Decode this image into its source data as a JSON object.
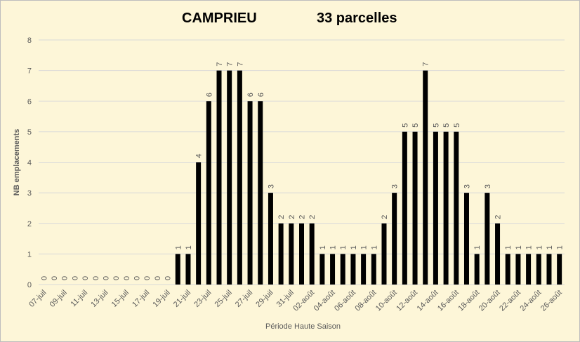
{
  "title_left": "CAMPRIEU",
  "title_right": "33 parcelles",
  "chart_data": {
    "type": "bar",
    "title": "CAMPRIEU 33 parcelles",
    "xlabel": "Période Haute Saison",
    "ylabel": "NB emplacements",
    "ylim": [
      0,
      8
    ],
    "yticks": [
      0,
      1,
      2,
      3,
      4,
      5,
      6,
      7,
      8
    ],
    "grid": true,
    "bar_color": "#000000",
    "tick_labels": [
      "07-juil",
      "09-juil",
      "11-juil",
      "13-juil",
      "15-juil",
      "17-juil",
      "19-juil",
      "21-juil",
      "23-juil",
      "25-juil",
      "27-juil",
      "29-juil",
      "31-juil",
      "02-août",
      "04-août",
      "06-août",
      "08-août",
      "10-août",
      "12-août",
      "14-août",
      "16-août",
      "18-août",
      "20-août",
      "22-août",
      "24-août",
      "26-août"
    ],
    "categories": [
      "07-juil",
      "08-juil",
      "09-juil",
      "10-juil",
      "11-juil",
      "12-juil",
      "13-juil",
      "14-juil",
      "15-juil",
      "16-juil",
      "17-juil",
      "18-juil",
      "19-juil",
      "20-juil",
      "21-juil",
      "22-juil",
      "23-juil",
      "24-juil",
      "25-juil",
      "26-juil",
      "27-juil",
      "28-juil",
      "29-juil",
      "30-juil",
      "31-juil",
      "01-août",
      "02-août",
      "03-août",
      "04-août",
      "05-août",
      "06-août",
      "07-août",
      "08-août",
      "09-août",
      "10-août",
      "11-août",
      "12-août",
      "13-août",
      "14-août",
      "15-août",
      "16-août",
      "17-août",
      "18-août",
      "19-août",
      "20-août",
      "21-août",
      "22-août",
      "23-août",
      "24-août",
      "25-août",
      "26-août"
    ],
    "values": [
      0,
      0,
      0,
      0,
      0,
      0,
      0,
      0,
      0,
      0,
      0,
      0,
      0,
      1,
      1,
      4,
      6,
      7,
      7,
      7,
      6,
      6,
      3,
      2,
      2,
      2,
      2,
      1,
      1,
      1,
      1,
      1,
      1,
      2,
      3,
      5,
      5,
      7,
      5,
      5,
      5,
      3,
      1,
      3,
      2,
      1,
      1,
      1,
      1,
      1,
      1
    ]
  }
}
